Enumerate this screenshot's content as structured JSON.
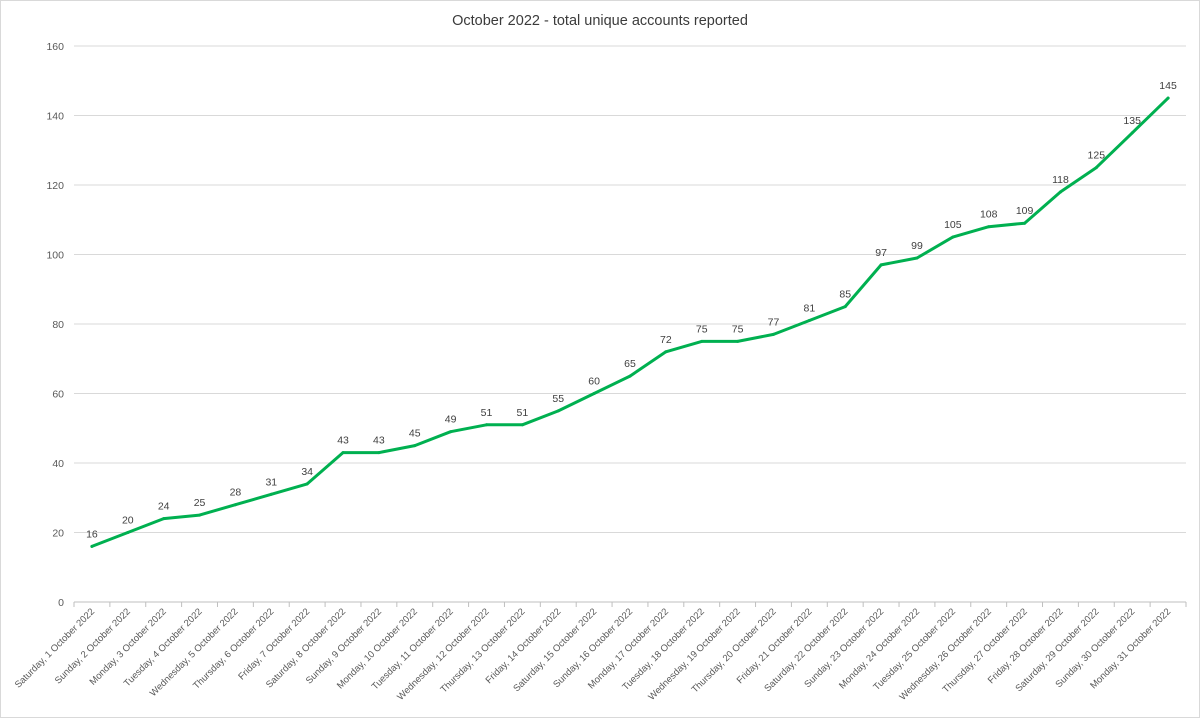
{
  "chart_data": {
    "type": "line",
    "title": "October 2022 - total unique accounts reported",
    "xlabel": "",
    "ylabel": "",
    "ylim": [
      0,
      160
    ],
    "yticks": [
      0,
      20,
      40,
      60,
      80,
      100,
      120,
      140,
      160
    ],
    "grid": true,
    "legend": "none",
    "line_color": "#00b050",
    "categories": [
      "Saturday, 1 October 2022",
      "Sunday, 2 October 2022",
      "Monday, 3 October 2022",
      "Tuesday, 4 October 2022",
      "Wednesday, 5 October 2022",
      "Thursday, 6 October 2022",
      "Friday, 7 October 2022",
      "Saturday, 8 October 2022",
      "Sunday, 9 October 2022",
      "Monday, 10 October 2022",
      "Tuesday, 11 October 2022",
      "Wednesday, 12 October 2022",
      "Thursday, 13 October 2022",
      "Friday, 14 October 2022",
      "Saturday, 15 October 2022",
      "Sunday, 16 October 2022",
      "Monday, 17 October 2022",
      "Tuesday, 18 October 2022",
      "Wednesday, 19 October 2022",
      "Thursday, 20 October 2022",
      "Friday, 21 October 2022",
      "Saturday, 22 October 2022",
      "Sunday, 23 October 2022",
      "Monday, 24 October 2022",
      "Tuesday, 25 October 2022",
      "Wednesday, 26 October 2022",
      "Thursday, 27 October 2022",
      "Friday, 28 October 2022",
      "Saturday, 29 October 2022",
      "Sunday, 30 October 2022",
      "Monday, 31 October 2022"
    ],
    "values": [
      16,
      20,
      24,
      25,
      28,
      31,
      34,
      43,
      43,
      45,
      49,
      51,
      51,
      55,
      60,
      65,
      72,
      75,
      75,
      77,
      81,
      85,
      97,
      99,
      105,
      108,
      109,
      118,
      125,
      135,
      145
    ]
  }
}
